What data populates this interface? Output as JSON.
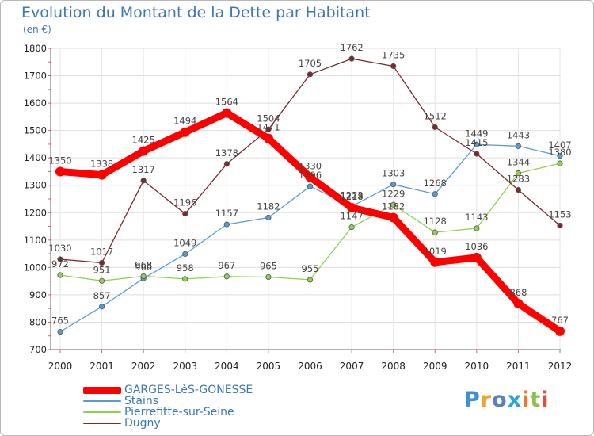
{
  "title": "Evolution du Montant de la Dette par Habitant",
  "subtitle": "(en €)",
  "logo": {
    "text": "Proxiti",
    "colors": [
      "#3d8fd6",
      "#f0a326",
      "#5a7fc4",
      "#2aa6d8",
      "#f07c22",
      "#8bc34a",
      "#e94b3c"
    ]
  },
  "chart_data": {
    "type": "line",
    "title": "Evolution du Montant de la Dette par Habitant",
    "subtitle": "(en €)",
    "categories": [
      "2000",
      "2001",
      "2002",
      "2003",
      "2004",
      "2005",
      "2006",
      "2007",
      "2008",
      "2009",
      "2010",
      "2011",
      "2012"
    ],
    "yticks": [
      700,
      800,
      900,
      1000,
      1100,
      1200,
      1300,
      1400,
      1500,
      1600,
      1700,
      1800
    ],
    "ylim": [
      700,
      1800
    ],
    "grid": true,
    "legend_position": "bottom-left",
    "series": [
      {
        "name": "GARGES-LèS-GONESSE",
        "color": "#ff0000",
        "thick": true,
        "values": [
          1350,
          1338,
          1425,
          1494,
          1564,
          1471,
          1330,
          1218,
          1182,
          1019,
          1036,
          868,
          767
        ],
        "labels": [
          "1350",
          "1338",
          "1425",
          "1494",
          "1564",
          "1471",
          "1330",
          "1218",
          "1182",
          "1019",
          "1036",
          "868",
          "767"
        ]
      },
      {
        "name": "Stains",
        "color": "#5a9bd5",
        "thick": false,
        "values": [
          765,
          857,
          960,
          1049,
          1157,
          1182,
          1296,
          1223,
          1303,
          1268,
          1449,
          1443,
          1407
        ],
        "labels": [
          "765",
          "857",
          "960",
          "1049",
          "1157",
          "1182",
          "1296",
          "1223",
          "1303",
          "1268",
          "1449",
          "1443",
          "1407"
        ]
      },
      {
        "name": "Pierrefitte-sur-Seine",
        "color": "#8ed14f",
        "thick": false,
        "values": [
          972,
          951,
          968,
          958,
          967,
          965,
          955,
          1147,
          1229,
          1128,
          1143,
          1344,
          1380
        ],
        "labels": [
          "972",
          "951",
          "968",
          "958",
          "967",
          "965",
          "955",
          "1147",
          "1229",
          "1128",
          "1143",
          "1344",
          "1380"
        ]
      },
      {
        "name": "Dugny",
        "color": "#7a2a2a",
        "thick": false,
        "values": [
          1030,
          1017,
          1317,
          1196,
          1378,
          1504,
          1705,
          1762,
          1735,
          1512,
          1415,
          1283,
          1153
        ],
        "labels": [
          "1030",
          "1017",
          "1317",
          "1196",
          "1378",
          "1504",
          "1705",
          "1762",
          "1735",
          "1512",
          "1415",
          "1283",
          "1153"
        ]
      }
    ]
  }
}
